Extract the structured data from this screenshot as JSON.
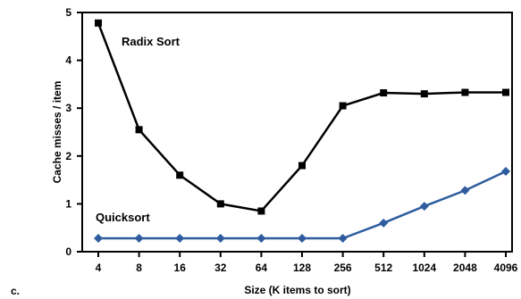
{
  "panel_label": "c.",
  "chart_data": {
    "type": "line",
    "title": "",
    "xlabel": "Size (K items to sort)",
    "ylabel": "Cache misses / item",
    "categories": [
      "4",
      "8",
      "16",
      "32",
      "64",
      "128",
      "256",
      "512",
      "1024",
      "2048",
      "4096"
    ],
    "yticks": [
      "0",
      "1",
      "2",
      "3",
      "4",
      "5"
    ],
    "ylim": [
      0,
      5
    ],
    "grid": false,
    "legend": "inline labels",
    "series": [
      {
        "name": "Radix Sort",
        "color": "#000000",
        "marker": "square",
        "values": [
          4.78,
          2.55,
          1.6,
          1.0,
          0.85,
          1.8,
          3.05,
          3.32,
          3.3,
          3.33,
          3.33
        ]
      },
      {
        "name": "Quicksort",
        "color": "#2e5c9e",
        "marker": "diamond",
        "values": [
          0.28,
          0.28,
          0.28,
          0.28,
          0.28,
          0.28,
          0.28,
          0.6,
          0.95,
          1.28,
          1.68
        ]
      }
    ]
  }
}
